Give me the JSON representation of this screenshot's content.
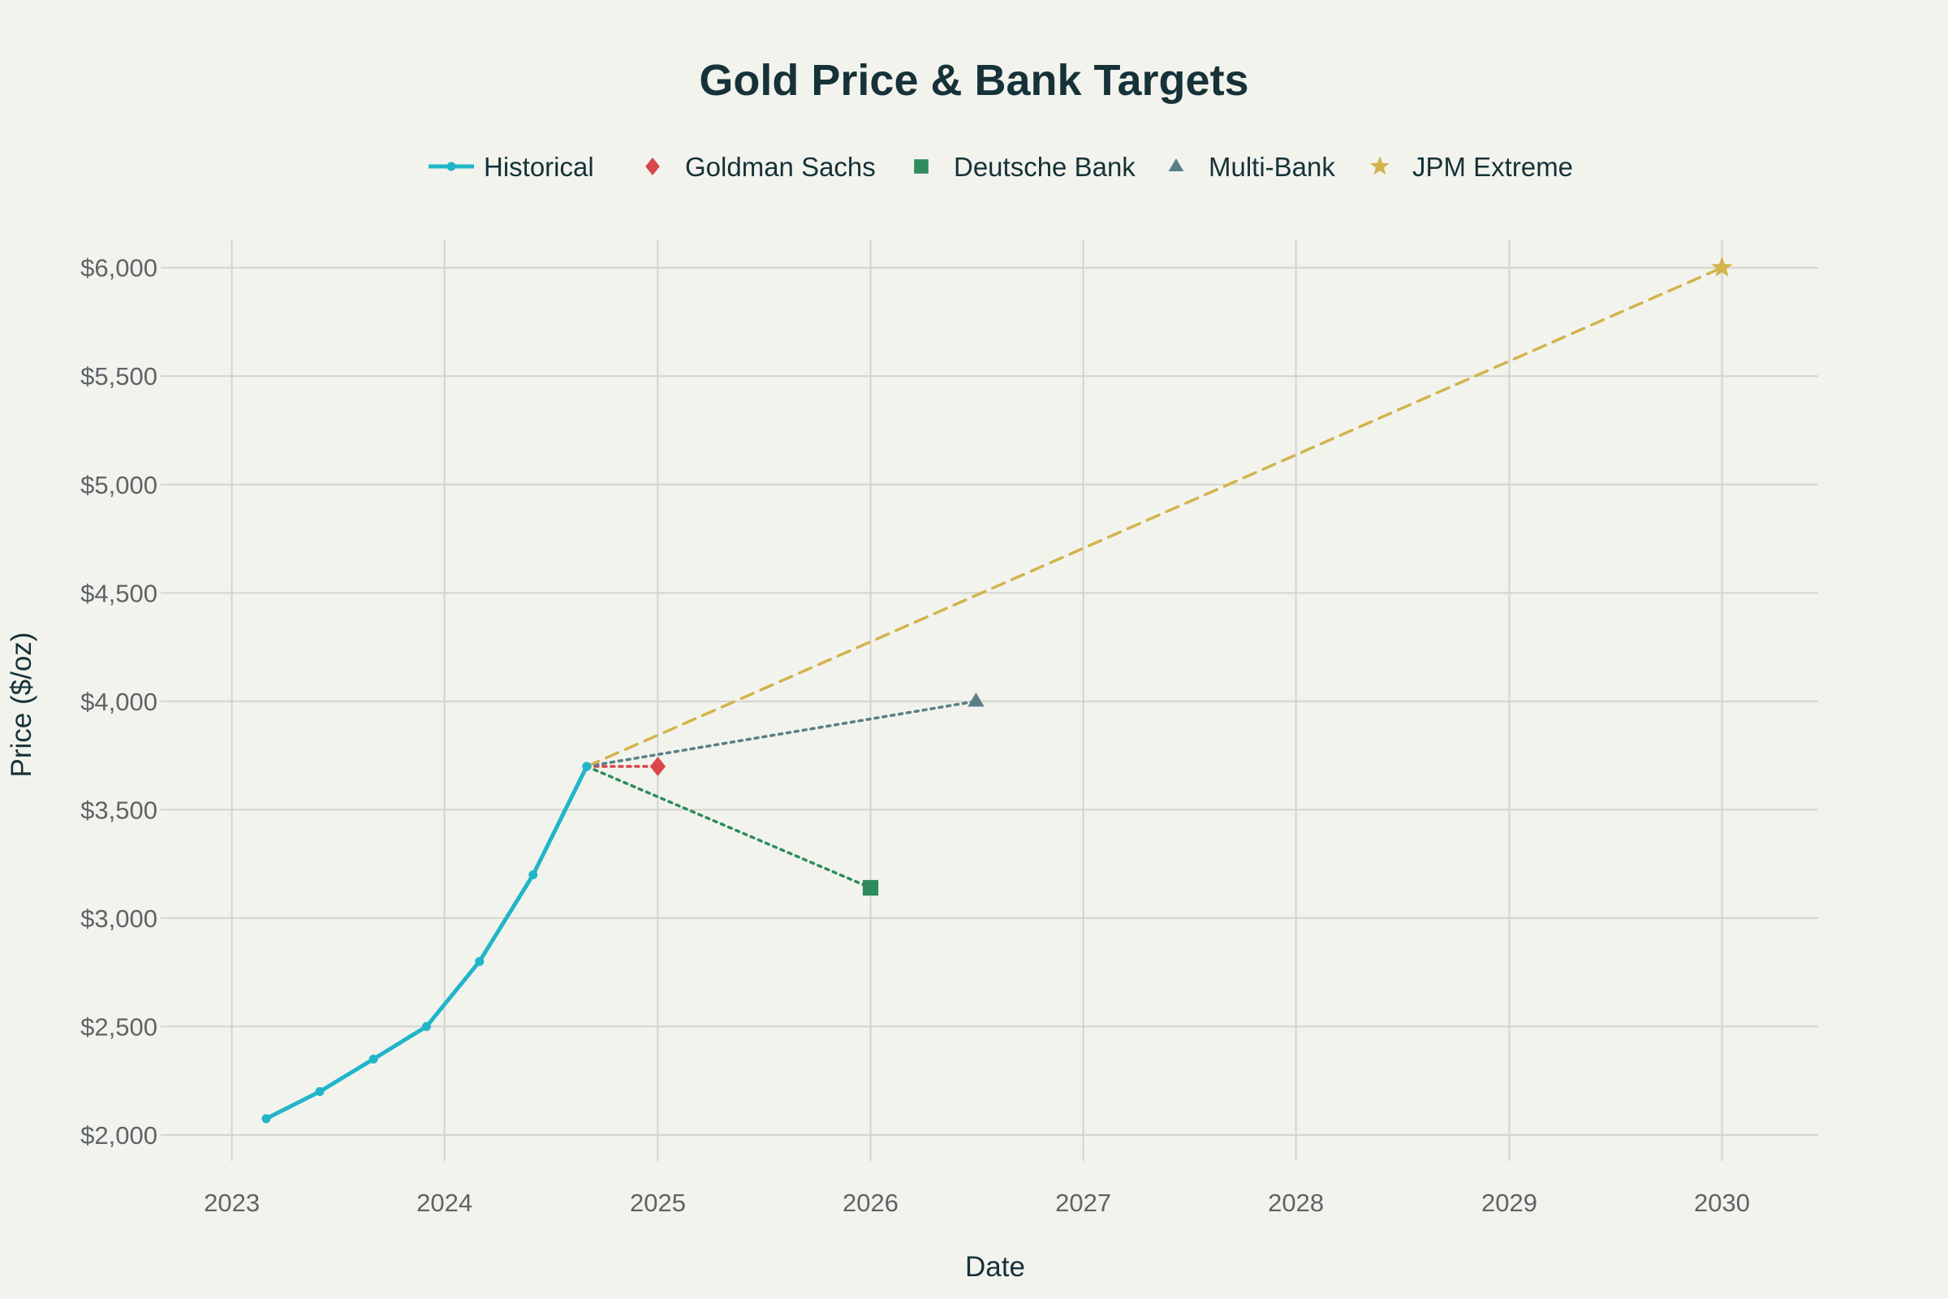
{
  "chart_data": {
    "type": "line",
    "title": "Gold Price & Bank Targets",
    "xlabel": "Date",
    "ylabel": "Price ($/oz)",
    "xlim": [
      "2022-09-01",
      "2030-06-15"
    ],
    "ylim": [
      1880,
      6130
    ],
    "x_ticks": [
      "2023-01-01",
      "2024-01-01",
      "2025-01-01",
      "2026-01-01",
      "2027-01-01",
      "2028-01-01",
      "2029-01-01",
      "2030-01-01"
    ],
    "x_tick_labels": [
      "2023",
      "2024",
      "2025",
      "2026",
      "2027",
      "2028",
      "2029",
      "2030"
    ],
    "y_ticks": [
      2000,
      2500,
      3000,
      3500,
      4000,
      4500,
      5000,
      5500,
      6000
    ],
    "y_tick_labels": [
      "$2,000",
      "$2,500",
      "$3,000",
      "$3,500",
      "$4,000",
      "$4,500",
      "$5,000",
      "$5,500",
      "$6,000"
    ],
    "grid": true,
    "legend_position": "top-center",
    "series": [
      {
        "name": "Historical",
        "color": "#21b5c8",
        "mode": "lines+markers",
        "dash": "solid",
        "marker": "circle",
        "x": [
          "2023-03-01",
          "2023-06-01",
          "2023-09-01",
          "2023-12-01",
          "2024-03-01",
          "2024-06-01",
          "2024-09-01"
        ],
        "y": [
          2075,
          2200,
          2350,
          2500,
          2800,
          3200,
          3700
        ]
      },
      {
        "name": "Goldman Sachs",
        "color": "#d8464b",
        "mode": "lines+markers",
        "dash": "dot",
        "marker": "diamond",
        "x": [
          "2024-09-01",
          "2025-01-01"
        ],
        "y": [
          3700,
          3700
        ]
      },
      {
        "name": "Deutsche Bank",
        "color": "#2e8b5b",
        "mode": "lines+markers",
        "dash": "dot",
        "marker": "square",
        "x": [
          "2024-09-01",
          "2026-01-01"
        ],
        "y": [
          3700,
          3140
        ]
      },
      {
        "name": "Multi-Bank",
        "color": "#5a7f87",
        "mode": "lines+markers",
        "dash": "dot",
        "marker": "triangle-up",
        "x": [
          "2024-09-01",
          "2026-07-01"
        ],
        "y": [
          3700,
          4000
        ]
      },
      {
        "name": "JPM Extreme",
        "color": "#d2b44a",
        "mode": "lines+markers",
        "dash": "dash",
        "marker": "star",
        "x": [
          "2024-09-01",
          "2030-01-01"
        ],
        "y": [
          3700,
          6000
        ]
      }
    ]
  }
}
